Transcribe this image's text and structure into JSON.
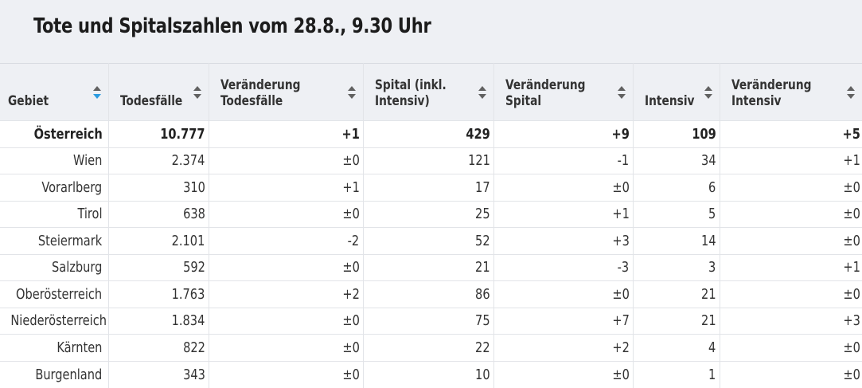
{
  "title": "Tote und Spitalszahlen vom 28.8., 9.30 Uhr",
  "columns": [
    {
      "label": "Gebiet",
      "sort_icon": "sort-active-icon"
    },
    {
      "label": "Todesfälle",
      "sort_icon": "sort-icon"
    },
    {
      "label": "Veränderung Todesfälle",
      "sort_icon": "sort-icon"
    },
    {
      "label": "Spital (inkl. Intensiv)",
      "sort_icon": "sort-icon"
    },
    {
      "label": "Veränderung Spital",
      "sort_icon": "sort-icon"
    },
    {
      "label": "Intensiv",
      "sort_icon": "sort-icon"
    },
    {
      "label": "Veränderung Intensiv",
      "sort_icon": "sort-icon"
    }
  ],
  "rows": [
    [
      "Österreich",
      "10.777",
      "+1",
      "429",
      "+9",
      "109",
      "+5"
    ],
    [
      "Wien",
      "2.374",
      "±0",
      "121",
      "-1",
      "34",
      "+1"
    ],
    [
      "Vorarlberg",
      "310",
      "+1",
      "17",
      "±0",
      "6",
      "±0"
    ],
    [
      "Tirol",
      "638",
      "±0",
      "25",
      "+1",
      "5",
      "±0"
    ],
    [
      "Steiermark",
      "2.101",
      "-2",
      "52",
      "+3",
      "14",
      "±0"
    ],
    [
      "Salzburg",
      "592",
      "±0",
      "21",
      "-3",
      "3",
      "+1"
    ],
    [
      "Oberösterreich",
      "1.763",
      "+2",
      "86",
      "±0",
      "21",
      "±0"
    ],
    [
      "Niederösterreich",
      "1.834",
      "±0",
      "75",
      "+7",
      "21",
      "+3"
    ],
    [
      "Kärnten",
      "822",
      "±0",
      "22",
      "+2",
      "4",
      "±0"
    ],
    [
      "Burgenland",
      "343",
      "±0",
      "10",
      "±0",
      "1",
      "±0"
    ]
  ],
  "colors": {
    "header_bg": "#eef0f4",
    "sort_active": "#2b9be0",
    "sort_default": "#616161"
  }
}
